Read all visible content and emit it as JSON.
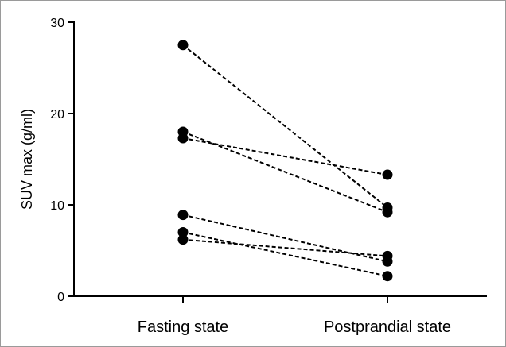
{
  "chart_data": {
    "type": "scatter",
    "subtype": "paired-lines",
    "title": "",
    "xlabel": "",
    "ylabel": "SUV max (g/ml)",
    "categories": [
      "Fasting state",
      "Postprandial state"
    ],
    "ylim": [
      0,
      30
    ],
    "yticks": [
      0,
      10,
      20,
      30
    ],
    "grid": false,
    "legend": "none",
    "line_style": "dashed",
    "marker": "filled-circle",
    "color": "#000000",
    "series": [
      {
        "values": [
          27.5,
          9.7
        ]
      },
      {
        "values": [
          18.0,
          9.2
        ]
      },
      {
        "values": [
          17.3,
          13.3
        ]
      },
      {
        "values": [
          8.9,
          3.8
        ]
      },
      {
        "values": [
          7.0,
          2.2
        ]
      },
      {
        "values": [
          6.2,
          4.4
        ]
      }
    ]
  }
}
